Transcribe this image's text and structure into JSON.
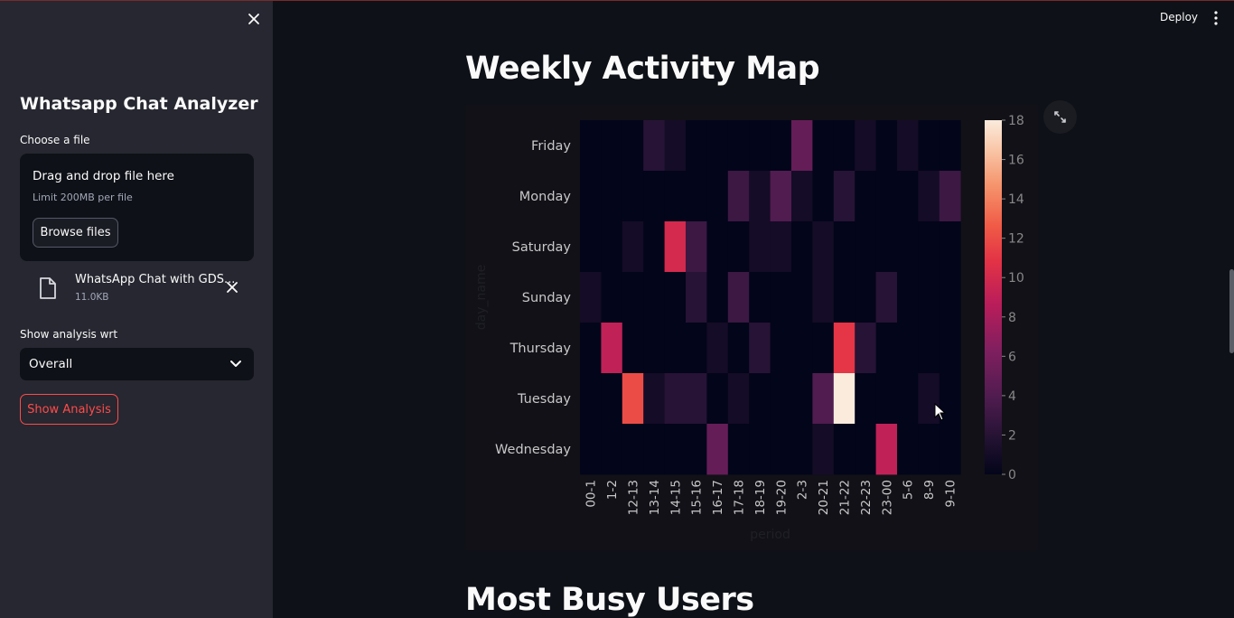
{
  "sidebar": {
    "app_title": "Whatsapp Chat Analyzer",
    "choose_file_label": "Choose a file",
    "dropzone": {
      "title": "Drag and drop file here",
      "limit": "Limit 200MB per file",
      "browse_label": "Browse files"
    },
    "file": {
      "name": "WhatsApp Chat with GDS...",
      "size": "11.0KB"
    },
    "analysis_label": "Show analysis wrt",
    "select_value": "Overall",
    "show_button": "Show Analysis"
  },
  "header": {
    "deploy_label": "Deploy"
  },
  "main": {
    "section_title": "Weekly Activity Map",
    "next_section_title": "Most Busy Users"
  },
  "colors": {
    "accent": "#ff4b4b",
    "background": "#0e1117",
    "sidebar": "#262730"
  },
  "chart_data": {
    "type": "heatmap",
    "xlabel": "period",
    "ylabel": "day_name",
    "x_categories": [
      "00-1",
      "1-2",
      "12-13",
      "13-14",
      "14-15",
      "15-16",
      "16-17",
      "17-18",
      "18-19",
      "19-20",
      "2-3",
      "20-21",
      "21-22",
      "22-23",
      "23-00",
      "5-6",
      "8-9",
      "9-10"
    ],
    "y_categories": [
      "Friday",
      "Monday",
      "Saturday",
      "Sunday",
      "Thursday",
      "Tuesday",
      "Wednesday"
    ],
    "values": [
      [
        0,
        0,
        0,
        2,
        1,
        0,
        0,
        0,
        0,
        0,
        5,
        0,
        0,
        1,
        0,
        1,
        0,
        0
      ],
      [
        0,
        0,
        0,
        0,
        0,
        0,
        0,
        3,
        1,
        4,
        1,
        0,
        2,
        0,
        0,
        0,
        1,
        3
      ],
      [
        0,
        0,
        1,
        0,
        10,
        3,
        0,
        0,
        1,
        1,
        0,
        1,
        0,
        0,
        0,
        0,
        0,
        0
      ],
      [
        1,
        0,
        0,
        0,
        0,
        2,
        0,
        3,
        0,
        0,
        0,
        1,
        0,
        0,
        2,
        0,
        0,
        0
      ],
      [
        0,
        9,
        0,
        0,
        0,
        0,
        1,
        0,
        2,
        0,
        0,
        0,
        11,
        2,
        0,
        0,
        0,
        0
      ],
      [
        0,
        0,
        12,
        1,
        2,
        2,
        0,
        1,
        0,
        0,
        0,
        4,
        18,
        0,
        0,
        0,
        1,
        0
      ],
      [
        0,
        0,
        0,
        0,
        0,
        0,
        5,
        0,
        0,
        0,
        0,
        1,
        0,
        0,
        9,
        0,
        0,
        0
      ]
    ],
    "colorbar_ticks": [
      0,
      2,
      4,
      6,
      8,
      10,
      12,
      14,
      16,
      18
    ],
    "value_range": [
      0,
      18
    ],
    "colormap": "rocket"
  }
}
